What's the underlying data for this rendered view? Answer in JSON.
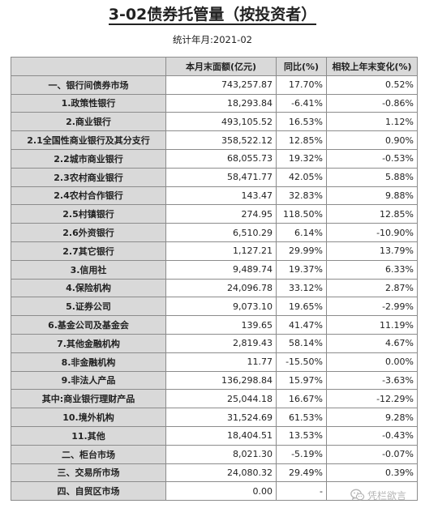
{
  "title": "3-02债券托管量（按投资者）",
  "stat_period": "统计年月:2021-02",
  "table": {
    "headers": [
      "",
      "本月末面额(亿元)",
      "同比(%)",
      "相较上年末变化(%)"
    ],
    "rows": [
      {
        "label": "一、银行间债券市场",
        "amount": "743,257.87",
        "yoy": "17.70%",
        "ytd": "0.52%"
      },
      {
        "label": "1.政策性银行",
        "amount": "18,293.84",
        "yoy": "-6.41%",
        "ytd": "-0.86%"
      },
      {
        "label": "2.商业银行",
        "amount": "493,105.52",
        "yoy": "16.53%",
        "ytd": "1.12%"
      },
      {
        "label": "2.1全国性商业银行及其分支行",
        "amount": "358,522.12",
        "yoy": "12.85%",
        "ytd": "0.90%"
      },
      {
        "label": "2.2城市商业银行",
        "amount": "68,055.73",
        "yoy": "19.32%",
        "ytd": "-0.53%"
      },
      {
        "label": "2.3农村商业银行",
        "amount": "58,471.77",
        "yoy": "42.05%",
        "ytd": "5.88%"
      },
      {
        "label": "2.4农村合作银行",
        "amount": "143.47",
        "yoy": "32.83%",
        "ytd": "9.88%"
      },
      {
        "label": "2.5村镇银行",
        "amount": "274.95",
        "yoy": "118.50%",
        "ytd": "12.85%"
      },
      {
        "label": "2.6外资银行",
        "amount": "6,510.29",
        "yoy": "6.14%",
        "ytd": "-10.90%"
      },
      {
        "label": "2.7其它银行",
        "amount": "1,127.21",
        "yoy": "29.99%",
        "ytd": "13.79%"
      },
      {
        "label": "3.信用社",
        "amount": "9,489.74",
        "yoy": "19.37%",
        "ytd": "6.33%"
      },
      {
        "label": "4.保险机构",
        "amount": "24,096.78",
        "yoy": "33.12%",
        "ytd": "2.87%"
      },
      {
        "label": "5.证券公司",
        "amount": "9,073.10",
        "yoy": "19.65%",
        "ytd": "-2.99%"
      },
      {
        "label": "6.基金公司及基金会",
        "amount": "139.65",
        "yoy": "41.47%",
        "ytd": "11.19%"
      },
      {
        "label": "7.其他金融机构",
        "amount": "2,819.43",
        "yoy": "58.14%",
        "ytd": "4.67%"
      },
      {
        "label": "8.非金融机构",
        "amount": "11.77",
        "yoy": "-15.50%",
        "ytd": "0.00%"
      },
      {
        "label": "9.非法人产品",
        "amount": "136,298.84",
        "yoy": "15.97%",
        "ytd": "-3.63%"
      },
      {
        "label": "其中:商业银行理财产品",
        "amount": "25,044.18",
        "yoy": "16.67%",
        "ytd": "-12.29%"
      },
      {
        "label": "10.境外机构",
        "amount": "31,524.69",
        "yoy": "61.53%",
        "ytd": "9.28%"
      },
      {
        "label": "11.其他",
        "amount": "18,404.51",
        "yoy": "13.53%",
        "ytd": "-0.43%"
      },
      {
        "label": "二、柜台市场",
        "amount": "8,021.30",
        "yoy": "-5.19%",
        "ytd": "-0.07%"
      },
      {
        "label": "三、交易所市场",
        "amount": "24,080.32",
        "yoy": "29.49%",
        "ytd": "0.39%"
      },
      {
        "label": "四、自贸区市场",
        "amount": "0.00",
        "yoy": "-",
        "ytd": ""
      }
    ]
  },
  "watermark": {
    "icon": "wechat-icon",
    "text": "凭栏欲言"
  },
  "colors": {
    "header_bg": "#d9d9d9",
    "border": "#8c8c8c",
    "watermark": "#b5b5b5"
  }
}
